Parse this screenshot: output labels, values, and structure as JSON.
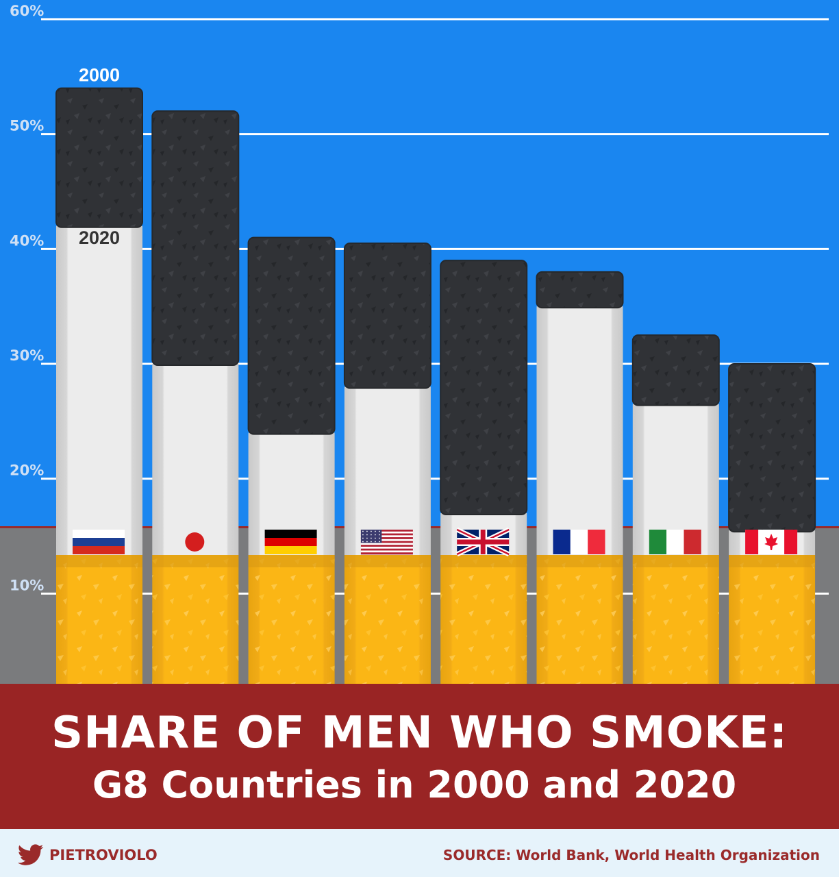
{
  "title": {
    "line1": "SHARE OF MEN WHO SMOKE:",
    "line2": "G8 Countries in 2000 and 2020"
  },
  "footer": {
    "author": "PIETROVIOLO",
    "source": "SOURCE: World Bank, World Health Organization"
  },
  "colors": {
    "sky": "#1a86f0",
    "ground": "#7a7b7d",
    "band": "#992424",
    "ash": "#2f3135",
    "paper": "#e9e9e9",
    "filter": "#f5b01c"
  },
  "chart_data": {
    "type": "bar",
    "title": "SHARE OF MEN WHO SMOKE: G8 Countries in 2000 and 2020",
    "ylim": [
      0,
      60
    ],
    "yticks": [
      "10%",
      "20%",
      "30%",
      "40%",
      "50%",
      "60%"
    ],
    "grid": true,
    "categories": [
      "Russia",
      "Japan",
      "Germany",
      "United States",
      "United Kingdom",
      "France",
      "Italy",
      "Canada"
    ],
    "category_icons": [
      "flag-russia",
      "flag-japan",
      "flag-germany",
      "flag-usa",
      "flag-uk",
      "flag-france",
      "flag-italy",
      "flag-canada"
    ],
    "series": [
      {
        "name": "2000",
        "values": [
          54,
          52,
          41,
          40.5,
          39,
          38,
          32.5,
          30
        ]
      },
      {
        "name": "2020",
        "values": [
          42,
          30,
          24,
          28,
          17,
          35,
          26.5,
          15.5
        ]
      }
    ]
  }
}
